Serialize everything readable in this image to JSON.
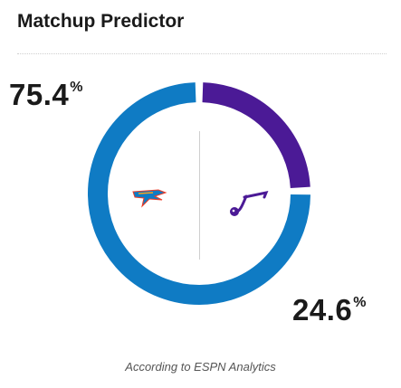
{
  "header": {
    "title": "Matchup Predictor"
  },
  "prediction": {
    "home": {
      "value": 75.4,
      "display": "75.4",
      "sign": "%",
      "logo": "okc-thunder-logo-icon",
      "color": "#0f7bc4"
    },
    "away": {
      "value": 24.6,
      "display": "24.6",
      "sign": "%",
      "logo": "utah-jazz-logo-icon",
      "color": "#4b1a96"
    }
  },
  "footer": {
    "source": "According to ESPN Analytics"
  }
}
